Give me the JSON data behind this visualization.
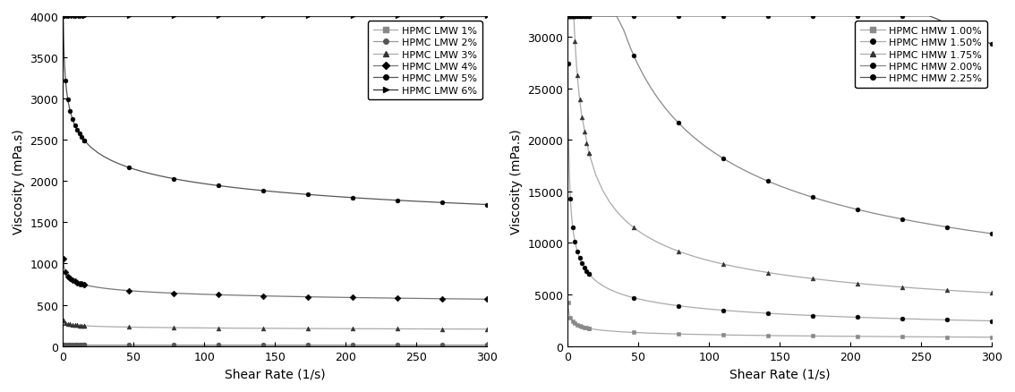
{
  "xlabel": "Shear Rate (1/s)",
  "ylabel": "Viscosity (mPa.s)",
  "xlim": [
    0,
    300
  ],
  "left_ylim": [
    0,
    4000
  ],
  "right_ylim": [
    0,
    32000
  ],
  "left_yticks": [
    0,
    500,
    1000,
    1500,
    2000,
    2500,
    3000,
    3500,
    4000
  ],
  "right_yticks": [
    0,
    5000,
    10000,
    15000,
    20000,
    25000,
    30000
  ],
  "xticks": [
    0,
    50,
    100,
    150,
    200,
    250,
    300
  ],
  "left_series": [
    {
      "label": "HPMC LMW 1%",
      "marker": "s",
      "color": "#888888",
      "linecolor": "#aaaaaa",
      "K": 8.0,
      "n": 1.0
    },
    {
      "label": "HPMC LMW 2%",
      "marker": "o",
      "color": "#555555",
      "linecolor": "#999999",
      "K": 22.0,
      "n": 1.0
    },
    {
      "label": "HPMC LMW 3%",
      "marker": "^",
      "color": "#333333",
      "linecolor": "#aaaaaa",
      "K": 290.0,
      "n": 0.94
    },
    {
      "label": "HPMC LMW 4%",
      "marker": "D",
      "color": "#000000",
      "linecolor": "#777777",
      "K": 950.0,
      "n": 0.91
    },
    {
      "label": "HPMC LMW 5%",
      "marker": "o",
      "color": "#000000",
      "linecolor": "#555555",
      "K": 3500.0,
      "n": 0.875
    },
    {
      "label": "HPMC LMW 6%",
      "marker": ">",
      "color": "#000000",
      "linecolor": "#333333",
      "K": 9000.0,
      "n": 0.86
    }
  ],
  "right_series": [
    {
      "label": "HPMC HMW 1.00%",
      "marker": "s",
      "color": "#888888",
      "linecolor": "#aaaaaa",
      "K": 3200.0,
      "n": 0.77
    },
    {
      "label": "HPMC HMW 1.50%",
      "marker": "o",
      "color": "#000000",
      "linecolor": "#aaaaaa",
      "K": 18000.0,
      "n": 0.65
    },
    {
      "label": "HPMC HMW 1.75%",
      "marker": "^",
      "color": "#333333",
      "linecolor": "#aaaaaa",
      "K": 60000.0,
      "n": 0.57
    },
    {
      "label": "HPMC HMW 2.00%",
      "marker": "o",
      "color": "#000000",
      "linecolor": "#888888",
      "K": 200000.0,
      "n": 0.49
    },
    {
      "label": "HPMC HMW 2.25%",
      "marker": "o",
      "color": "#000000",
      "linecolor": "#555555",
      "K": 800000.0,
      "n": 0.42
    }
  ]
}
